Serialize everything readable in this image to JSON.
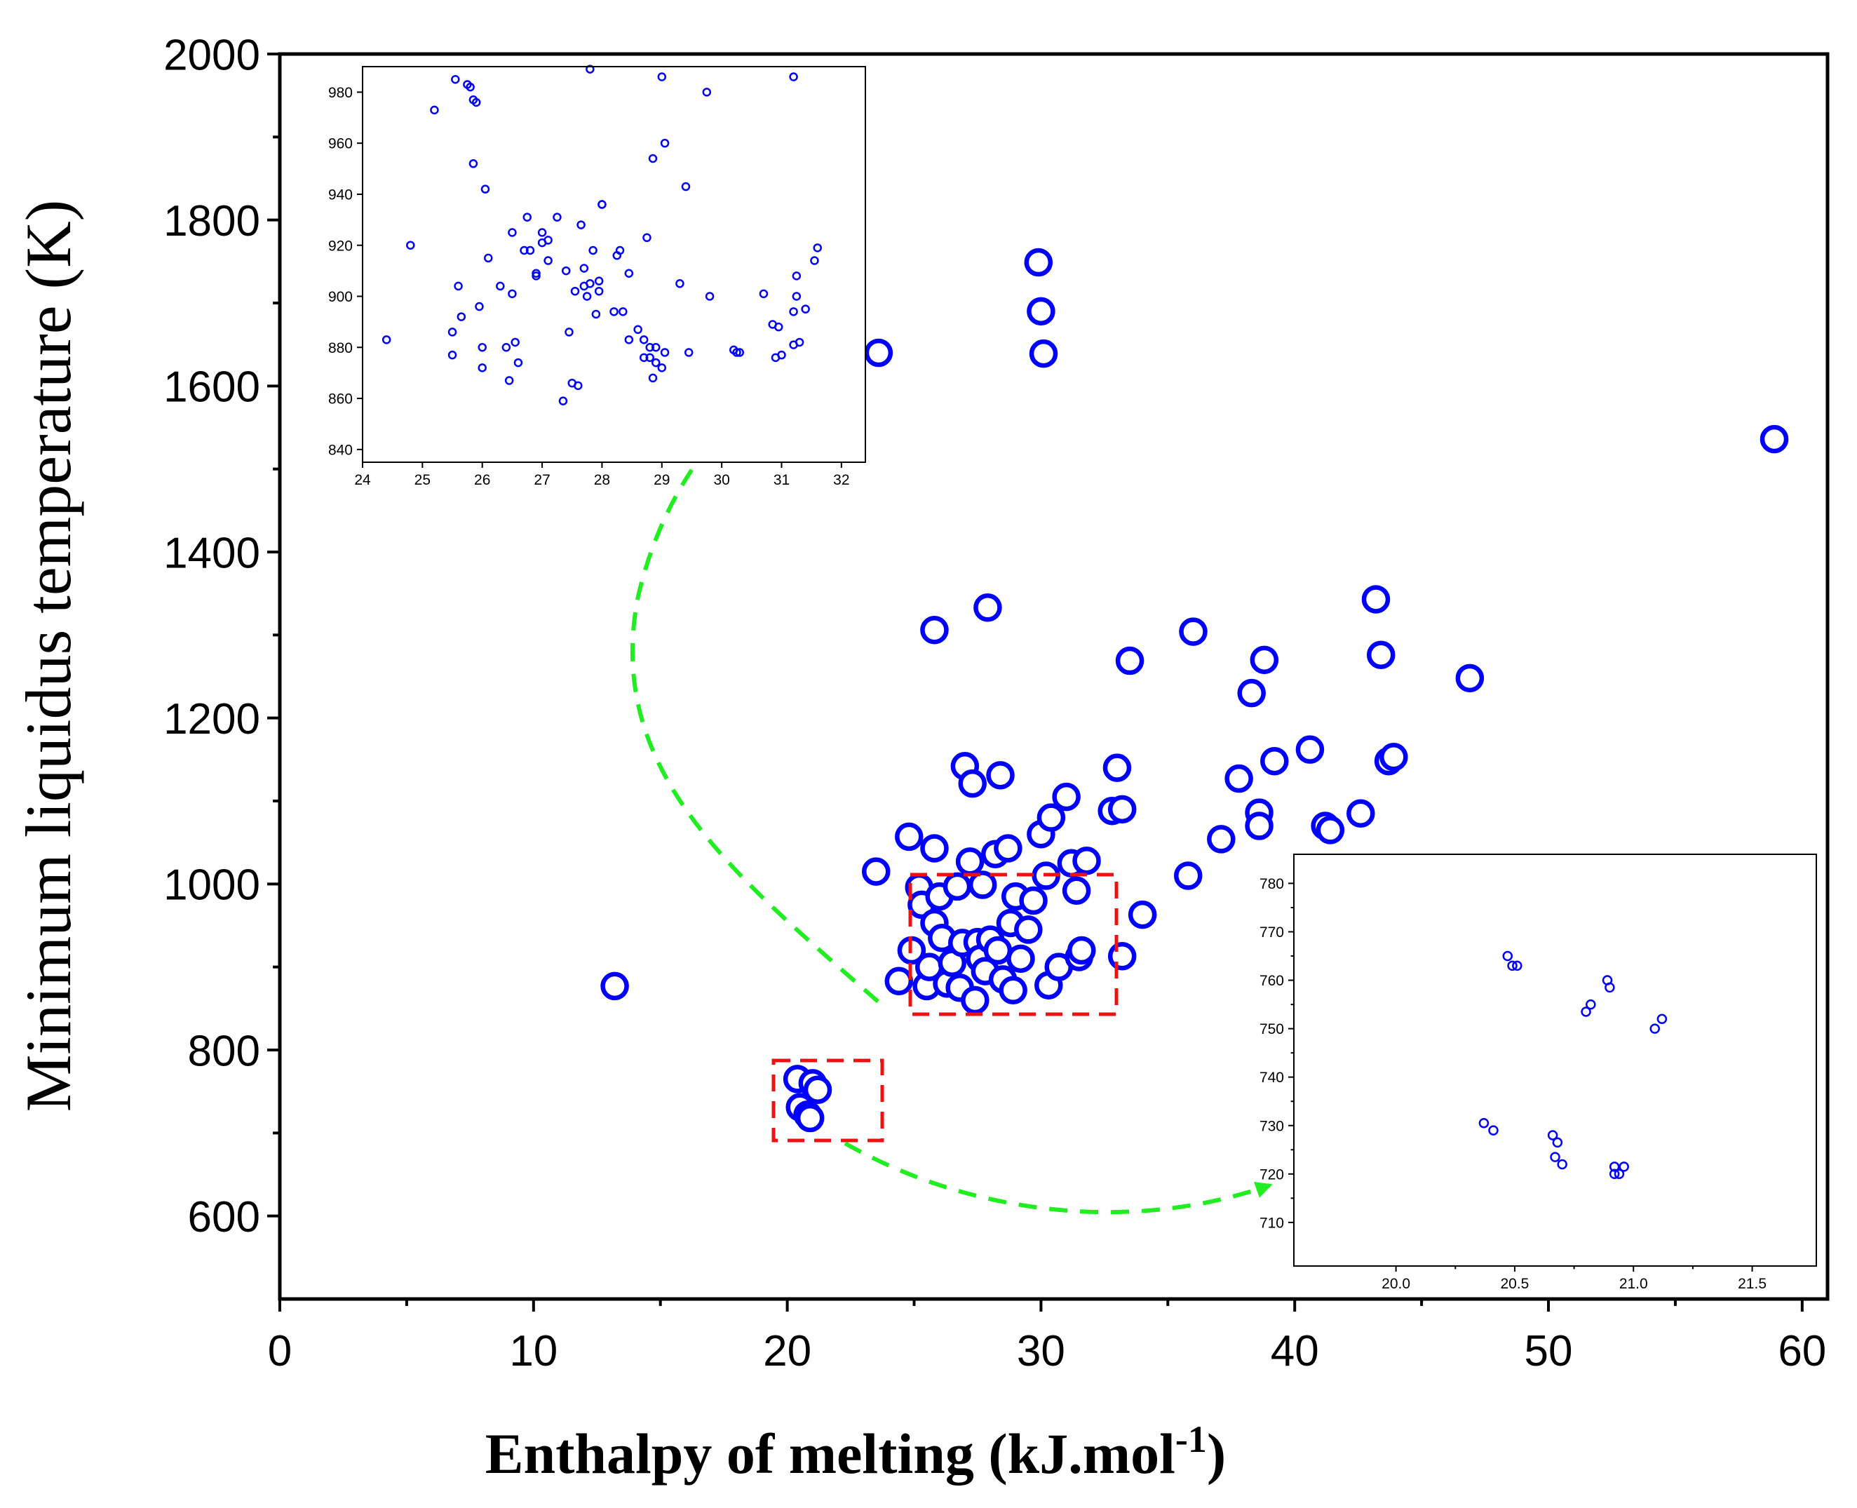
{
  "chart_data": [
    {
      "id": "main",
      "type": "scatter",
      "title": "",
      "xlabel": "Enthalpy of melting (kJ.mol",
      "xlabel_sup": "-1",
      "xlabel_end": ")",
      "ylabel": "Minimum liquidus temperature (K)",
      "xlim": [
        0,
        61
      ],
      "ylim": [
        500,
        2000
      ],
      "xticks": [
        0,
        10,
        20,
        30,
        40,
        50,
        60
      ],
      "yticks": [
        600,
        800,
        1000,
        1200,
        1400,
        1600,
        1800,
        2000
      ],
      "grid": false,
      "marker_color": "#0000ff",
      "points": [
        {
          "x": 13.2,
          "y": 877
        },
        {
          "x": 20.4,
          "y": 765
        },
        {
          "x": 20.5,
          "y": 731
        },
        {
          "x": 20.8,
          "y": 722
        },
        {
          "x": 20.9,
          "y": 718
        },
        {
          "x": 21.0,
          "y": 760
        },
        {
          "x": 21.2,
          "y": 752
        },
        {
          "x": 23.5,
          "y": 1015
        },
        {
          "x": 24.4,
          "y": 883
        },
        {
          "x": 24.8,
          "y": 1057
        },
        {
          "x": 24.9,
          "y": 920
        },
        {
          "x": 25.2,
          "y": 996
        },
        {
          "x": 25.3,
          "y": 975
        },
        {
          "x": 25.5,
          "y": 877
        },
        {
          "x": 25.6,
          "y": 900
        },
        {
          "x": 25.8,
          "y": 1043
        },
        {
          "x": 25.8,
          "y": 953
        },
        {
          "x": 26.0,
          "y": 985
        },
        {
          "x": 26.1,
          "y": 935
        },
        {
          "x": 26.3,
          "y": 880
        },
        {
          "x": 26.5,
          "y": 905
        },
        {
          "x": 26.7,
          "y": 997
        },
        {
          "x": 26.8,
          "y": 875
        },
        {
          "x": 26.9,
          "y": 929
        },
        {
          "x": 27.0,
          "y": 1142
        },
        {
          "x": 27.2,
          "y": 1027
        },
        {
          "x": 27.3,
          "y": 1121
        },
        {
          "x": 27.4,
          "y": 860
        },
        {
          "x": 27.5,
          "y": 930
        },
        {
          "x": 27.6,
          "y": 910
        },
        {
          "x": 27.7,
          "y": 999
        },
        {
          "x": 27.8,
          "y": 895
        },
        {
          "x": 27.9,
          "y": 1333
        },
        {
          "x": 28.0,
          "y": 933
        },
        {
          "x": 28.2,
          "y": 1036
        },
        {
          "x": 28.3,
          "y": 920
        },
        {
          "x": 28.4,
          "y": 1131
        },
        {
          "x": 28.5,
          "y": 885
        },
        {
          "x": 28.7,
          "y": 1043
        },
        {
          "x": 28.8,
          "y": 953
        },
        {
          "x": 28.9,
          "y": 872
        },
        {
          "x": 29.0,
          "y": 985
        },
        {
          "x": 29.2,
          "y": 910
        },
        {
          "x": 29.5,
          "y": 945
        },
        {
          "x": 29.7,
          "y": 980
        },
        {
          "x": 29.9,
          "y": 1749
        },
        {
          "x": 30.0,
          "y": 1690
        },
        {
          "x": 30.1,
          "y": 1639
        },
        {
          "x": 30.0,
          "y": 1060
        },
        {
          "x": 30.2,
          "y": 1010
        },
        {
          "x": 30.3,
          "y": 878
        },
        {
          "x": 30.4,
          "y": 1080
        },
        {
          "x": 30.7,
          "y": 900
        },
        {
          "x": 31.0,
          "y": 1105
        },
        {
          "x": 31.2,
          "y": 1025
        },
        {
          "x": 31.4,
          "y": 992
        },
        {
          "x": 31.5,
          "y": 912
        },
        {
          "x": 31.6,
          "y": 920
        },
        {
          "x": 31.8,
          "y": 1028
        },
        {
          "x": 32.8,
          "y": 1088
        },
        {
          "x": 33.0,
          "y": 1140
        },
        {
          "x": 33.2,
          "y": 1090
        },
        {
          "x": 33.2,
          "y": 913
        },
        {
          "x": 33.5,
          "y": 1269
        },
        {
          "x": 34.0,
          "y": 963
        },
        {
          "x": 35.8,
          "y": 1010
        },
        {
          "x": 36.0,
          "y": 1304
        },
        {
          "x": 37.1,
          "y": 1054
        },
        {
          "x": 37.8,
          "y": 1127
        },
        {
          "x": 38.3,
          "y": 1230
        },
        {
          "x": 38.6,
          "y": 1086
        },
        {
          "x": 38.6,
          "y": 1070
        },
        {
          "x": 38.8,
          "y": 1270
        },
        {
          "x": 39.2,
          "y": 1148
        },
        {
          "x": 40.6,
          "y": 1162
        },
        {
          "x": 41.2,
          "y": 1070
        },
        {
          "x": 41.4,
          "y": 1065
        },
        {
          "x": 42.6,
          "y": 1085
        },
        {
          "x": 43.2,
          "y": 1343
        },
        {
          "x": 43.4,
          "y": 1276
        },
        {
          "x": 43.7,
          "y": 1148
        },
        {
          "x": 43.9,
          "y": 1153
        },
        {
          "x": 46.9,
          "y": 1248
        },
        {
          "x": 23.6,
          "y": 1640
        },
        {
          "x": 25.8,
          "y": 1306
        },
        {
          "x": 58.9,
          "y": 1536
        }
      ]
    },
    {
      "id": "inset_top",
      "type": "scatter",
      "title": "",
      "xlim": [
        24,
        32.4
      ],
      "ylim": [
        835,
        990
      ],
      "xticks": [
        24,
        25,
        26,
        27,
        28,
        29,
        30,
        31,
        32
      ],
      "yticks": [
        840,
        860,
        880,
        900,
        920,
        940,
        960,
        980
      ],
      "marker_color": "#0000ff",
      "points": [
        {
          "x": 24.4,
          "y": 883
        },
        {
          "x": 24.8,
          "y": 920
        },
        {
          "x": 25.2,
          "y": 973
        },
        {
          "x": 25.5,
          "y": 877
        },
        {
          "x": 25.5,
          "y": 886
        },
        {
          "x": 25.55,
          "y": 985
        },
        {
          "x": 25.6,
          "y": 904
        },
        {
          "x": 25.65,
          "y": 892
        },
        {
          "x": 25.75,
          "y": 983
        },
        {
          "x": 25.8,
          "y": 982
        },
        {
          "x": 25.85,
          "y": 977
        },
        {
          "x": 25.85,
          "y": 952
        },
        {
          "x": 25.9,
          "y": 976
        },
        {
          "x": 25.95,
          "y": 896
        },
        {
          "x": 26.0,
          "y": 880
        },
        {
          "x": 26.0,
          "y": 872
        },
        {
          "x": 26.05,
          "y": 942
        },
        {
          "x": 26.1,
          "y": 915
        },
        {
          "x": 26.3,
          "y": 904
        },
        {
          "x": 26.4,
          "y": 880
        },
        {
          "x": 26.45,
          "y": 867
        },
        {
          "x": 26.5,
          "y": 901
        },
        {
          "x": 26.5,
          "y": 925
        },
        {
          "x": 26.55,
          "y": 882
        },
        {
          "x": 26.6,
          "y": 874
        },
        {
          "x": 26.7,
          "y": 918
        },
        {
          "x": 26.75,
          "y": 931
        },
        {
          "x": 26.8,
          "y": 918
        },
        {
          "x": 26.9,
          "y": 909
        },
        {
          "x": 26.9,
          "y": 908
        },
        {
          "x": 27.0,
          "y": 925
        },
        {
          "x": 27.0,
          "y": 921
        },
        {
          "x": 27.1,
          "y": 922
        },
        {
          "x": 27.1,
          "y": 914
        },
        {
          "x": 27.25,
          "y": 931
        },
        {
          "x": 27.35,
          "y": 859
        },
        {
          "x": 27.4,
          "y": 910
        },
        {
          "x": 27.45,
          "y": 886
        },
        {
          "x": 27.5,
          "y": 866
        },
        {
          "x": 27.55,
          "y": 902
        },
        {
          "x": 27.6,
          "y": 865
        },
        {
          "x": 27.65,
          "y": 928
        },
        {
          "x": 27.7,
          "y": 904
        },
        {
          "x": 27.7,
          "y": 911
        },
        {
          "x": 27.75,
          "y": 900
        },
        {
          "x": 27.8,
          "y": 905
        },
        {
          "x": 27.8,
          "y": 989
        },
        {
          "x": 27.85,
          "y": 918
        },
        {
          "x": 27.9,
          "y": 893
        },
        {
          "x": 27.95,
          "y": 906
        },
        {
          "x": 27.95,
          "y": 902
        },
        {
          "x": 28.0,
          "y": 936
        },
        {
          "x": 28.0,
          "y": 936
        },
        {
          "x": 28.2,
          "y": 894
        },
        {
          "x": 28.25,
          "y": 916
        },
        {
          "x": 28.3,
          "y": 918
        },
        {
          "x": 28.35,
          "y": 894
        },
        {
          "x": 28.45,
          "y": 909
        },
        {
          "x": 28.45,
          "y": 883
        },
        {
          "x": 28.6,
          "y": 887
        },
        {
          "x": 28.7,
          "y": 883
        },
        {
          "x": 28.7,
          "y": 876
        },
        {
          "x": 28.75,
          "y": 923
        },
        {
          "x": 28.8,
          "y": 876
        },
        {
          "x": 28.8,
          "y": 880
        },
        {
          "x": 28.85,
          "y": 954
        },
        {
          "x": 28.85,
          "y": 868
        },
        {
          "x": 28.9,
          "y": 880
        },
        {
          "x": 28.9,
          "y": 874
        },
        {
          "x": 29.0,
          "y": 986
        },
        {
          "x": 29.0,
          "y": 872
        },
        {
          "x": 29.05,
          "y": 878
        },
        {
          "x": 29.05,
          "y": 960
        },
        {
          "x": 29.3,
          "y": 905
        },
        {
          "x": 29.4,
          "y": 943
        },
        {
          "x": 29.45,
          "y": 878
        },
        {
          "x": 29.75,
          "y": 980
        },
        {
          "x": 29.8,
          "y": 900
        },
        {
          "x": 30.2,
          "y": 879
        },
        {
          "x": 30.25,
          "y": 878
        },
        {
          "x": 30.3,
          "y": 878
        },
        {
          "x": 30.7,
          "y": 901
        },
        {
          "x": 30.85,
          "y": 889
        },
        {
          "x": 30.9,
          "y": 876
        },
        {
          "x": 30.95,
          "y": 888
        },
        {
          "x": 31.0,
          "y": 877
        },
        {
          "x": 31.2,
          "y": 986
        },
        {
          "x": 31.2,
          "y": 894
        },
        {
          "x": 31.2,
          "y": 881
        },
        {
          "x": 31.25,
          "y": 908
        },
        {
          "x": 31.25,
          "y": 900
        },
        {
          "x": 31.3,
          "y": 882
        },
        {
          "x": 31.4,
          "y": 895
        },
        {
          "x": 31.55,
          "y": 914
        },
        {
          "x": 31.6,
          "y": 919
        }
      ]
    },
    {
      "id": "inset_bottom",
      "type": "scatter",
      "title": "",
      "xlim": [
        19.57,
        21.77
      ],
      "ylim": [
        701,
        786
      ],
      "xticks": [
        20.0,
        20.5,
        21.0,
        21.5
      ],
      "xticklabels": [
        "20.0",
        "20.5",
        "21.0",
        "21.5"
      ],
      "yticks": [
        710,
        720,
        730,
        740,
        750,
        760,
        770,
        780
      ],
      "marker_color": "#0000ff",
      "points": [
        {
          "x": 20.37,
          "y": 730.5
        },
        {
          "x": 20.41,
          "y": 729
        },
        {
          "x": 20.47,
          "y": 765
        },
        {
          "x": 20.49,
          "y": 763
        },
        {
          "x": 20.51,
          "y": 763
        },
        {
          "x": 20.66,
          "y": 728
        },
        {
          "x": 20.67,
          "y": 723.5
        },
        {
          "x": 20.68,
          "y": 726.5
        },
        {
          "x": 20.7,
          "y": 722
        },
        {
          "x": 20.8,
          "y": 753.5
        },
        {
          "x": 20.82,
          "y": 755
        },
        {
          "x": 20.89,
          "y": 760
        },
        {
          "x": 20.9,
          "y": 758.5
        },
        {
          "x": 20.92,
          "y": 721.5
        },
        {
          "x": 20.92,
          "y": 720
        },
        {
          "x": 20.94,
          "y": 720
        },
        {
          "x": 20.96,
          "y": 721.5
        },
        {
          "x": 21.09,
          "y": 750
        },
        {
          "x": 21.12,
          "y": 752
        }
      ]
    }
  ]
}
